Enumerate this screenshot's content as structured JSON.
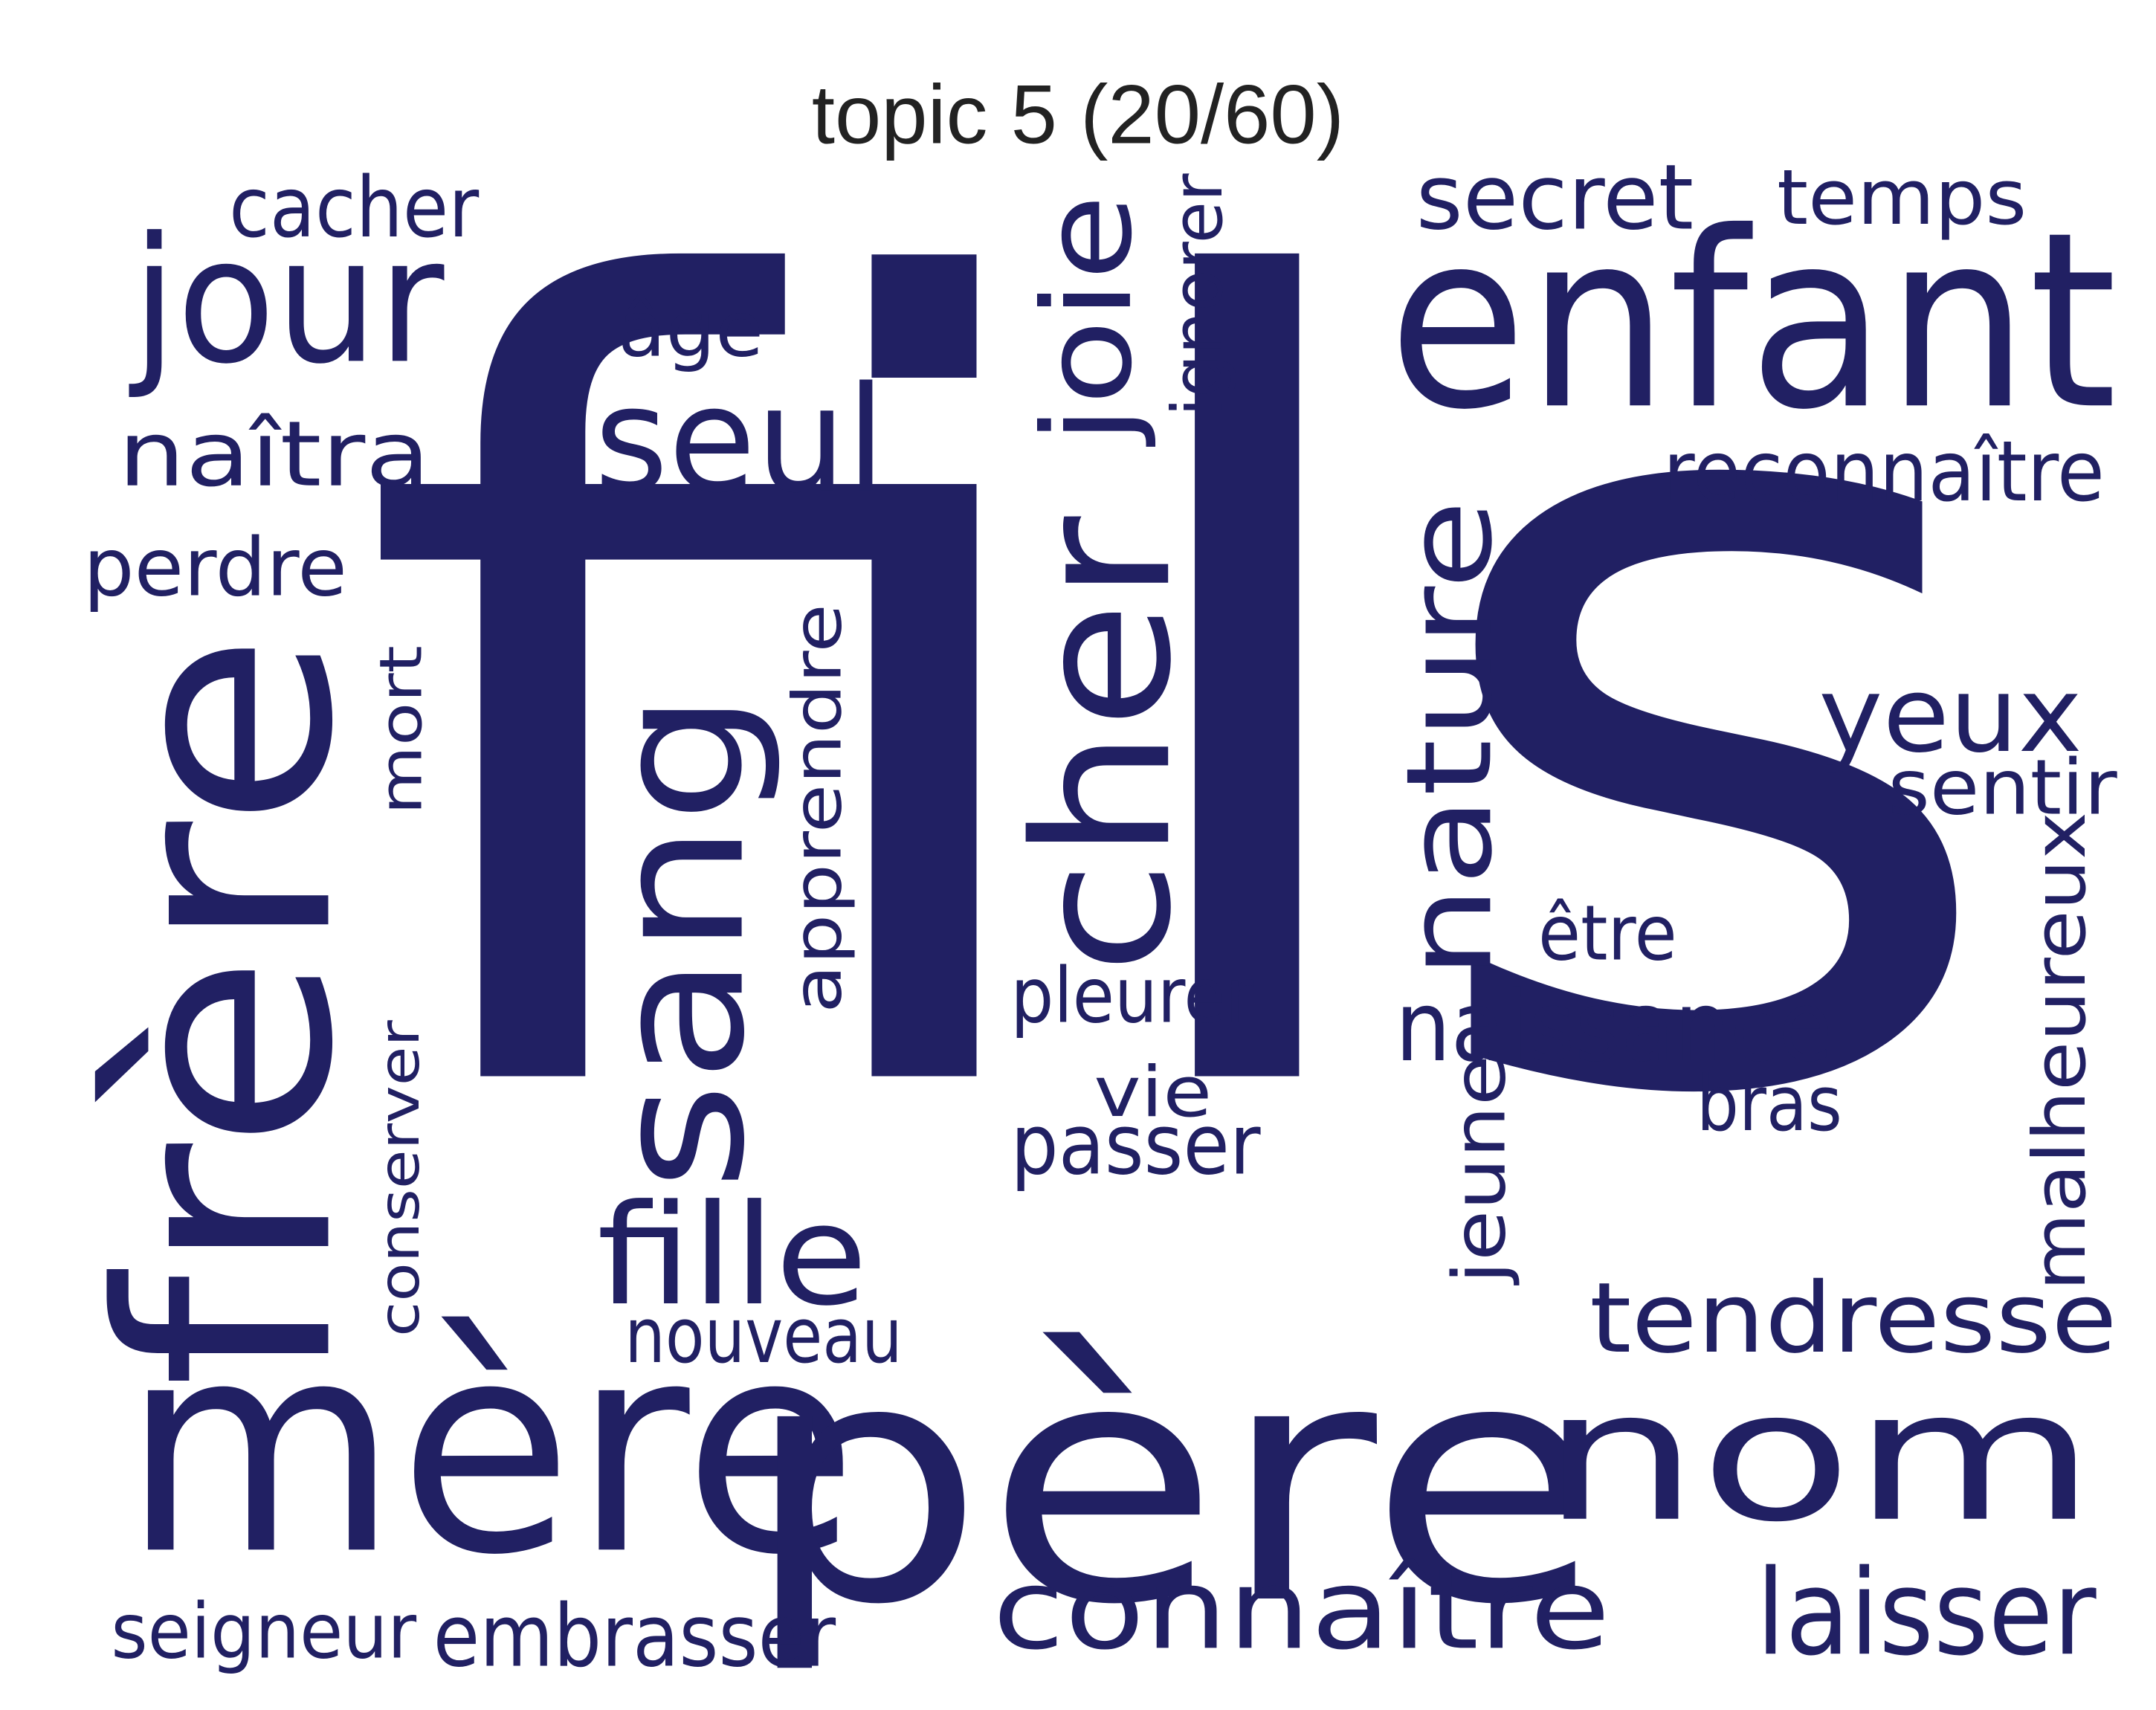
{
  "title": "topic 5 (20/60)",
  "colors": {
    "word": "#212063",
    "title": "#222222",
    "background": "#ffffff"
  },
  "words": [
    "fils",
    "mère",
    "père",
    "nom",
    "frère",
    "enfant",
    "sang",
    "cher",
    "nature",
    "jour",
    "seul",
    "joie",
    "connaître",
    "laisser",
    "tendresse",
    "fille",
    "yeux",
    "naîtra",
    "secret",
    "temps",
    "cacher",
    "âge",
    "ignorer",
    "reconnaître",
    "perdre",
    "mort",
    "apprendre",
    "sentir",
    "malheureux",
    "être",
    "pleurer",
    "naissance",
    "vie",
    "passer",
    "bras",
    "jeune",
    "conserver",
    "nouveau",
    "seigneur",
    "embrasser"
  ]
}
